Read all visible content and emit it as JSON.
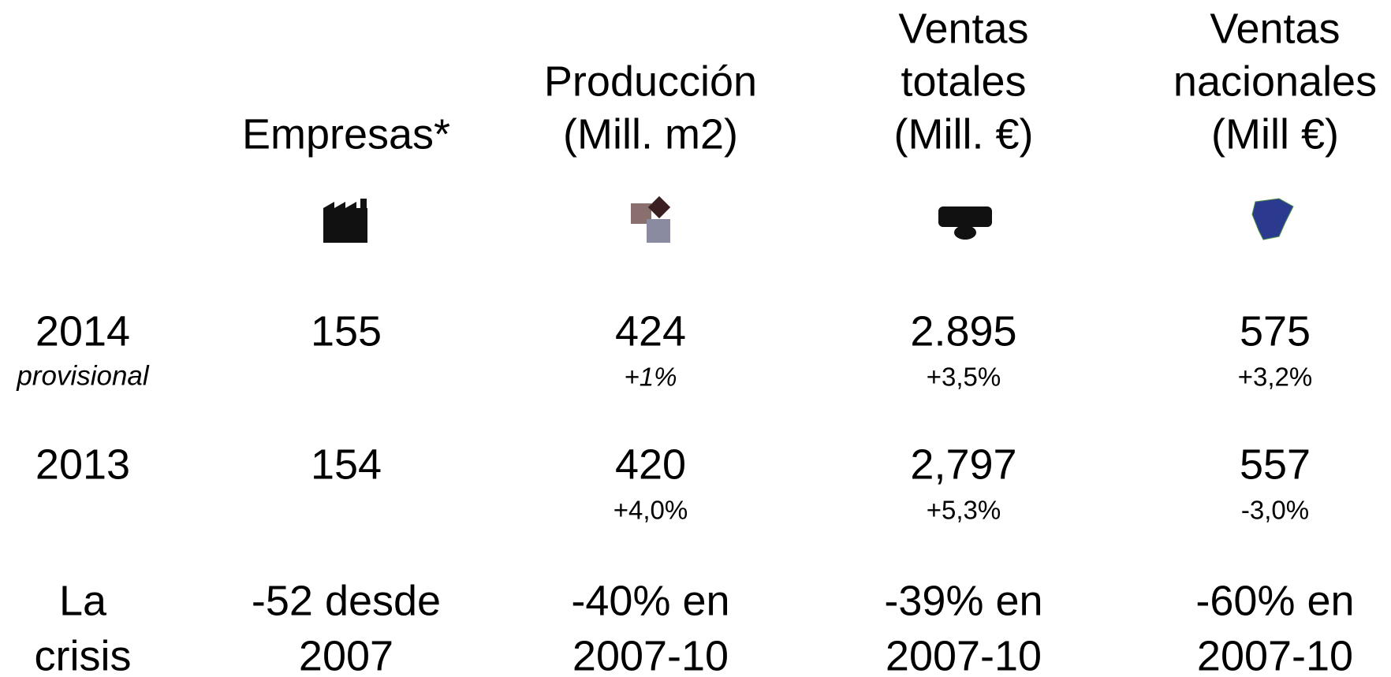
{
  "table": {
    "headers": [
      [
        "Empresas*"
      ],
      [
        "Producción",
        "(Mill. m2)"
      ],
      [
        "Ventas",
        "totales",
        "(Mill. €)"
      ],
      [
        "Ventas",
        "nacionales",
        "(Mill €)"
      ]
    ],
    "rows": [
      {
        "label": [
          "2014"
        ],
        "note": "provisional",
        "cells": [
          {
            "value": [
              "155"
            ]
          },
          {
            "value": [
              "424"
            ],
            "change": "+1%"
          },
          {
            "value": [
              "2.895"
            ],
            "change": "+3,5%"
          },
          {
            "value": [
              "575"
            ],
            "change": "+3,2%"
          }
        ]
      },
      {
        "label": [
          "2013"
        ],
        "cells": [
          {
            "value": [
              "154"
            ]
          },
          {
            "value": [
              "420"
            ],
            "change": "+4,0%"
          },
          {
            "value": [
              "2,797"
            ],
            "change": "+5,3%"
          },
          {
            "value": [
              "557"
            ],
            "change": "-3,0%"
          }
        ]
      },
      {
        "label": [
          "La",
          "crisis"
        ],
        "cells": [
          {
            "value": [
              "-52 desde",
              "2007"
            ]
          },
          {
            "value": [
              "-40% en",
              "2007-10"
            ]
          },
          {
            "value": [
              "-39% en",
              "2007-10"
            ]
          },
          {
            "value": [
              "-60% en",
              "2007-10"
            ]
          }
        ]
      }
    ]
  }
}
